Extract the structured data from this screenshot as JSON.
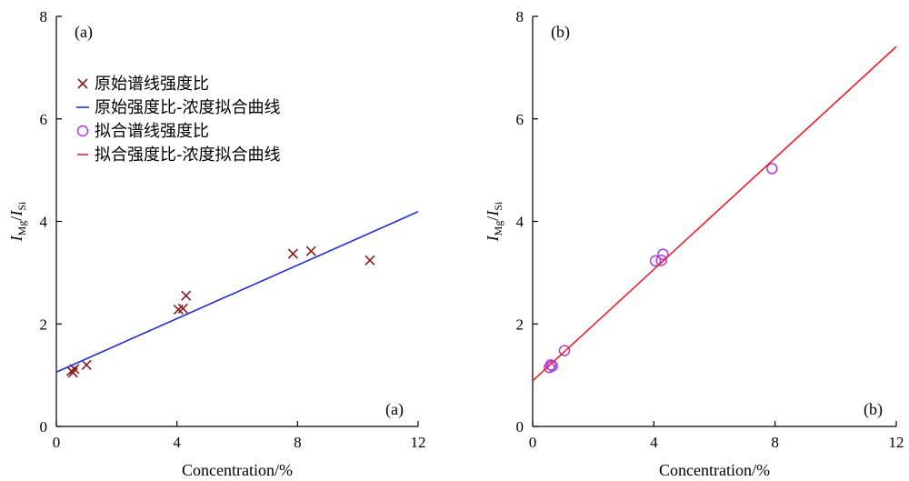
{
  "chart_data": [
    {
      "type": "scatter",
      "panel_label_top": "(a)",
      "panel_label_bottom": "(a)",
      "xlabel": "Concentration/%",
      "ylabel": {
        "num": "I",
        "num_sub": "Mg",
        "sep": "/",
        "den": "I",
        "den_sub": "Si"
      },
      "xlim": [
        0,
        12
      ],
      "ylim": [
        0,
        8
      ],
      "xticks": [
        0,
        4,
        8,
        12
      ],
      "yticks": [
        0,
        2,
        4,
        6,
        8
      ],
      "grid": false,
      "legend_position": "top-left",
      "series": [
        {
          "name": "原始谱线强度比",
          "kind": "points",
          "marker": "x",
          "color": "#8b1a1a",
          "points": [
            {
              "x": 0.5,
              "y": 1.08
            },
            {
              "x": 0.55,
              "y": 1.05
            },
            {
              "x": 0.6,
              "y": 1.12
            },
            {
              "x": 1.0,
              "y": 1.2
            },
            {
              "x": 4.05,
              "y": 2.28
            },
            {
              "x": 4.2,
              "y": 2.3
            },
            {
              "x": 4.3,
              "y": 2.55
            },
            {
              "x": 7.85,
              "y": 3.37
            },
            {
              "x": 8.45,
              "y": 3.42
            },
            {
              "x": 10.4,
              "y": 3.24
            }
          ]
        },
        {
          "name": "原始强度比-浓度拟合曲线",
          "kind": "line",
          "color": "#1f2fd0",
          "points": [
            {
              "x": 0,
              "y": 1.06
            },
            {
              "x": 12,
              "y": 4.19
            }
          ]
        },
        {
          "name": "拟合谱线强度比",
          "kind": "legend-only",
          "marker": "circle",
          "color": "#b23cd8"
        },
        {
          "name": "拟合强度比-浓度拟合曲线",
          "kind": "legend-only",
          "marker": "dash",
          "color": "#e8202a"
        }
      ]
    },
    {
      "type": "scatter",
      "panel_label_top": "(b)",
      "panel_label_bottom": "(b)",
      "xlabel": "Concentration/%",
      "ylabel": {
        "num": "I",
        "num_sub": "Mg",
        "sep": "/",
        "den": "I",
        "den_sub": "Si"
      },
      "xlim": [
        0,
        12
      ],
      "ylim": [
        0,
        8
      ],
      "xticks": [
        0,
        4,
        8,
        12
      ],
      "yticks": [
        0,
        2,
        4,
        6,
        8
      ],
      "grid": false,
      "series": [
        {
          "kind": "points",
          "marker": "circle",
          "color": "#b23cd8",
          "points": [
            {
              "x": 0.55,
              "y": 1.15
            },
            {
              "x": 0.6,
              "y": 1.2
            },
            {
              "x": 0.65,
              "y": 1.18
            },
            {
              "x": 1.05,
              "y": 1.48
            },
            {
              "x": 4.05,
              "y": 3.23
            },
            {
              "x": 4.25,
              "y": 3.24
            },
            {
              "x": 4.3,
              "y": 3.36
            },
            {
              "x": 7.9,
              "y": 5.03
            }
          ]
        },
        {
          "kind": "line",
          "color": "#e8202a",
          "points": [
            {
              "x": 0,
              "y": 0.89
            },
            {
              "x": 12,
              "y": 7.41
            }
          ]
        }
      ]
    }
  ]
}
